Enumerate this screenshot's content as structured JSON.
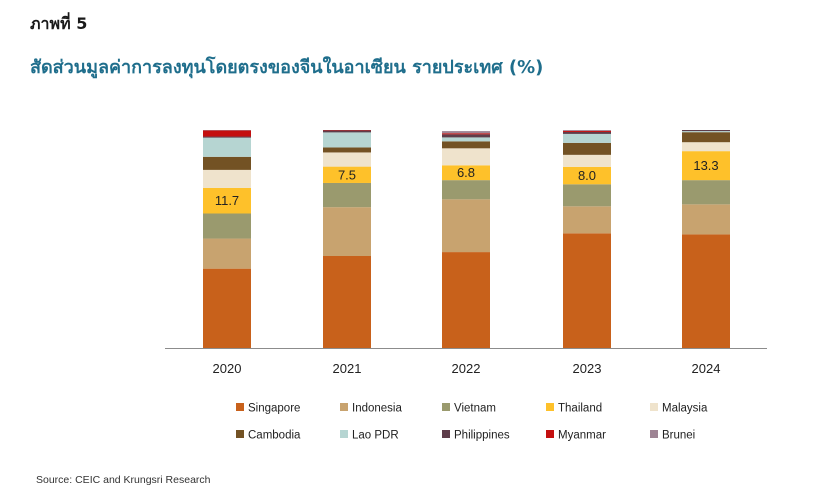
{
  "figure_label": "ภาพที่ 5",
  "title": "สัดส่วนมูลค่าการลงทุนโดยตรงของจีนในอาเซียน รายประเทศ (%)",
  "source": "Source: CEIC and Krungsri Research",
  "chart_data": {
    "type": "bar",
    "stacked": true,
    "categories": [
      "2020",
      "2021",
      "2022",
      "2023",
      "2024"
    ],
    "ylim": [
      0,
      100
    ],
    "grid": false,
    "legend_position": "bottom",
    "series": [
      {
        "name": "Singapore",
        "color": "#c8611b",
        "values": [
          36.4,
          42.2,
          44.0,
          52.6,
          52.1
        ]
      },
      {
        "name": "Indonesia",
        "color": "#c8a36f",
        "values": [
          13.8,
          22.4,
          24.2,
          12.4,
          13.8
        ]
      },
      {
        "name": "Vietnam",
        "color": "#9a9a6e",
        "values": [
          11.5,
          11.1,
          8.8,
          10.1,
          11.1
        ]
      },
      {
        "name": "Thailand",
        "color": "#fec12a",
        "values": [
          11.7,
          7.5,
          6.8,
          8.0,
          13.3
        ]
      },
      {
        "name": "Malaysia",
        "color": "#efe3cc",
        "values": [
          8.3,
          6.5,
          7.8,
          5.5,
          4.1
        ]
      },
      {
        "name": "Cambodia",
        "color": "#735224",
        "values": [
          6.0,
          2.3,
          3.2,
          5.5,
          4.6
        ]
      },
      {
        "name": "Lao PDR",
        "color": "#b6d5d2",
        "values": [
          8.8,
          6.9,
          1.8,
          4.1,
          0.5
        ]
      },
      {
        "name": "Philippines",
        "color": "#5e3d4a",
        "values": [
          0.5,
          0.9,
          1.4,
          0.9,
          0.5
        ]
      },
      {
        "name": "Myanmar",
        "color": "#c40f0f",
        "values": [
          2.8,
          0.2,
          0.5,
          0.5,
          0.0
        ]
      },
      {
        "name": "Brunei",
        "color": "#9e8494",
        "values": [
          0.2,
          0.0,
          1.0,
          0.4,
          0.0
        ]
      }
    ],
    "data_labels": {
      "series": "Thailand",
      "texts": [
        "11.7",
        "7.5",
        "6.8",
        "8.0",
        "13.3"
      ]
    }
  }
}
